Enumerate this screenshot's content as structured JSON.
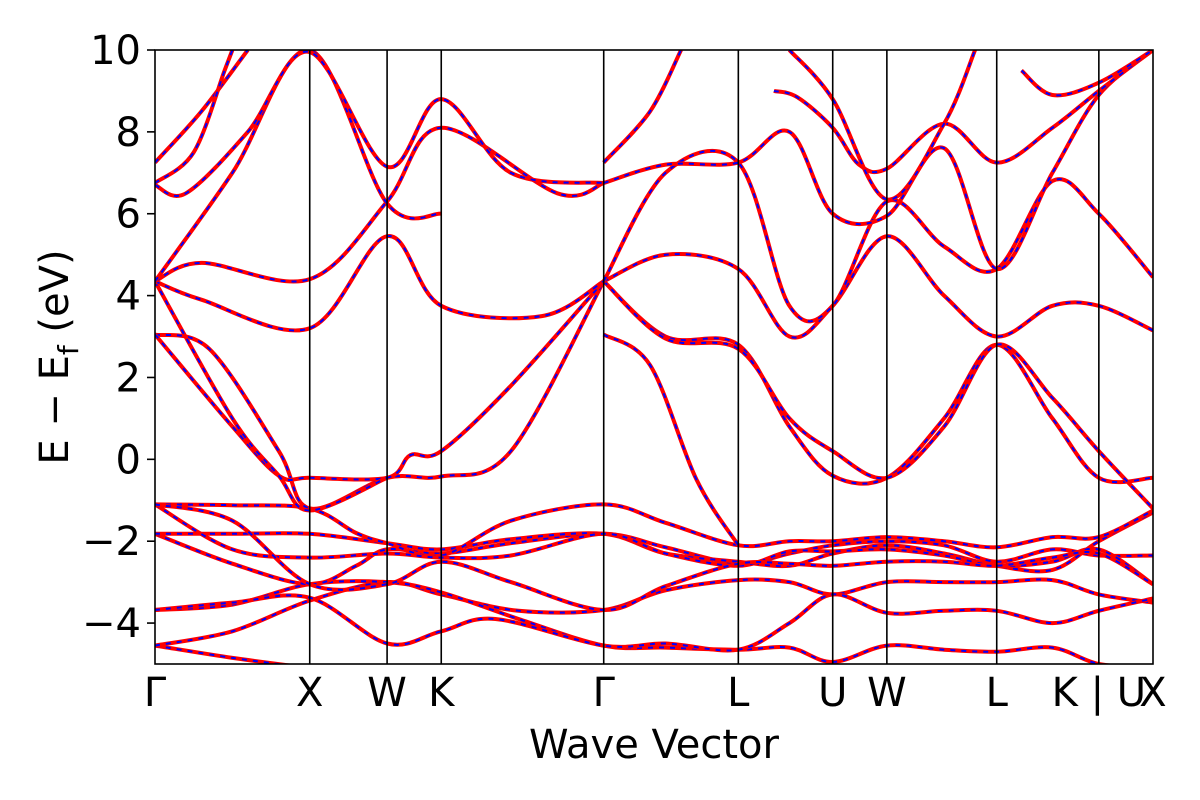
{
  "chart_data": {
    "type": "line",
    "title": "",
    "xlabel": "Wave Vector",
    "ylabel_main": "E − E",
    "ylabel_sub": "f",
    "ylabel_unit": " (eV)",
    "ylim": [
      -5,
      10
    ],
    "xlim": [
      0,
      6.45
    ],
    "yticks": [
      -4,
      -2,
      0,
      2,
      4,
      6,
      8,
      10
    ],
    "ytick_labels": [
      "−4",
      "−2",
      "0",
      "2",
      "4",
      "6",
      "8",
      "10"
    ],
    "kpoints": [
      {
        "label": "Γ",
        "x": 0.0
      },
      {
        "label": "X",
        "x": 1.0
      },
      {
        "label": "W",
        "x": 1.5
      },
      {
        "label": "K",
        "x": 1.85
      },
      {
        "label": "Γ",
        "x": 2.9
      },
      {
        "label": "L",
        "x": 3.77
      },
      {
        "label": "U",
        "x": 4.38
      },
      {
        "label": "W",
        "x": 4.73
      },
      {
        "label": "L",
        "x": 5.44
      },
      {
        "label": "K | U",
        "x": 6.1
      },
      {
        "label": "X",
        "x": 6.45
      }
    ],
    "grid": false,
    "series_colors": {
      "dft": "#ff0000",
      "fit": "#0000ff"
    },
    "bands": [
      [
        [
          0,
          -4.55
        ],
        [
          0.5,
          -4.85
        ],
        [
          1.0,
          -5.1
        ]
      ],
      [
        [
          0,
          -4.55
        ],
        [
          0.5,
          -4.2
        ],
        [
          1.0,
          -3.45
        ],
        [
          1.5,
          -3.0
        ],
        [
          1.85,
          -3.3
        ],
        [
          2.35,
          -3.7
        ],
        [
          2.9,
          -3.68
        ],
        [
          3.3,
          -3.2
        ],
        [
          3.77,
          -2.95
        ],
        [
          4.1,
          -3.0
        ],
        [
          4.38,
          -3.3
        ],
        [
          4.73,
          -3.0
        ],
        [
          5.1,
          -3.0
        ],
        [
          5.44,
          -3.0
        ],
        [
          5.8,
          -2.95
        ],
        [
          6.1,
          -3.3
        ],
        [
          6.45,
          -3.5
        ]
      ],
      [
        [
          0,
          -3.68
        ],
        [
          0.5,
          -3.55
        ],
        [
          1.0,
          -3.05
        ],
        [
          1.5,
          -3.0
        ],
        [
          1.85,
          -3.25
        ],
        [
          2.35,
          -3.9
        ],
        [
          2.9,
          -4.55
        ],
        [
          3.3,
          -4.6
        ],
        [
          3.77,
          -4.65
        ],
        [
          4.1,
          -4.6
        ],
        [
          4.38,
          -4.95
        ],
        [
          4.73,
          -4.55
        ],
        [
          5.1,
          -4.65
        ],
        [
          5.44,
          -4.7
        ],
        [
          5.8,
          -4.6
        ],
        [
          6.1,
          -5.0
        ],
        [
          6.45,
          -5.1
        ]
      ],
      [
        [
          0,
          -3.68
        ],
        [
          0.5,
          -3.5
        ],
        [
          1.0,
          -3.38
        ],
        [
          1.5,
          -4.5
        ],
        [
          1.85,
          -4.2
        ],
        [
          2.2,
          -3.9
        ],
        [
          2.9,
          -4.55
        ],
        [
          3.3,
          -4.5
        ],
        [
          3.77,
          -4.65
        ],
        [
          4.1,
          -4.0
        ],
        [
          4.38,
          -3.3
        ],
        [
          4.73,
          -3.75
        ],
        [
          5.1,
          -3.7
        ],
        [
          5.44,
          -3.7
        ],
        [
          5.8,
          -4.0
        ],
        [
          6.1,
          -3.7
        ],
        [
          6.45,
          -3.4
        ]
      ],
      [
        [
          0,
          -1.82
        ],
        [
          0.5,
          -2.55
        ],
        [
          1.0,
          -3.05
        ],
        [
          1.3,
          -2.6
        ],
        [
          1.5,
          -2.2
        ],
        [
          1.85,
          -2.3
        ],
        [
          2.3,
          -2.05
        ],
        [
          2.9,
          -1.82
        ],
        [
          3.3,
          -2.15
        ],
        [
          3.77,
          -2.55
        ],
        [
          4.1,
          -2.3
        ],
        [
          4.38,
          -2.1
        ],
        [
          4.73,
          -2.0
        ],
        [
          5.1,
          -2.1
        ],
        [
          5.44,
          -2.5
        ],
        [
          5.8,
          -2.2
        ],
        [
          6.1,
          -2.35
        ],
        [
          6.45,
          -2.35
        ]
      ],
      [
        [
          0,
          -1.82
        ],
        [
          0.5,
          -1.82
        ],
        [
          1.0,
          -1.82
        ],
        [
          1.5,
          -2.05
        ],
        [
          1.85,
          -2.2
        ],
        [
          2.3,
          -1.95
        ],
        [
          2.9,
          -1.82
        ],
        [
          3.3,
          -2.3
        ],
        [
          3.77,
          -2.5
        ],
        [
          4.1,
          -2.6
        ],
        [
          4.38,
          -2.3
        ],
        [
          4.73,
          -2.1
        ],
        [
          5.1,
          -2.3
        ],
        [
          5.44,
          -2.6
        ],
        [
          5.8,
          -2.7
        ],
        [
          6.1,
          -2.0
        ],
        [
          6.45,
          -1.3
        ]
      ],
      [
        [
          0,
          -1.1
        ],
        [
          0.5,
          -1.12
        ],
        [
          1.0,
          -1.2
        ],
        [
          1.3,
          -1.8
        ],
        [
          1.5,
          -2.05
        ],
        [
          1.85,
          -2.35
        ],
        [
          2.3,
          -1.5
        ],
        [
          2.9,
          -1.1
        ],
        [
          3.3,
          -1.55
        ],
        [
          3.77,
          -2.1
        ],
        [
          4.1,
          -2.0
        ],
        [
          4.38,
          -2.0
        ],
        [
          4.73,
          -1.9
        ],
        [
          5.1,
          -2.0
        ],
        [
          5.44,
          -2.15
        ],
        [
          5.8,
          -1.9
        ],
        [
          6.1,
          -1.9
        ],
        [
          6.45,
          -1.25
        ]
      ],
      [
        [
          0,
          -1.1
        ],
        [
          0.5,
          -2.2
        ],
        [
          1.0,
          -2.4
        ],
        [
          1.5,
          -2.3
        ],
        [
          1.85,
          -2.4
        ],
        [
          2.3,
          -2.35
        ],
        [
          2.9,
          -1.82
        ],
        [
          3.3,
          -2.3
        ],
        [
          3.77,
          -2.6
        ],
        [
          4.1,
          -2.25
        ],
        [
          4.38,
          -2.25
        ],
        [
          4.73,
          -2.2
        ],
        [
          5.1,
          -2.35
        ],
        [
          5.44,
          -2.6
        ],
        [
          5.8,
          -2.5
        ],
        [
          6.1,
          -2.2
        ],
        [
          6.45,
          -3.05
        ]
      ],
      [
        [
          0,
          -1.1
        ],
        [
          0.5,
          -1.5
        ],
        [
          1.0,
          -3.05
        ],
        [
          1.5,
          -3.05
        ],
        [
          1.85,
          -2.5
        ],
        [
          2.3,
          -3.0
        ],
        [
          2.9,
          -3.68
        ],
        [
          3.3,
          -3.1
        ],
        [
          3.77,
          -2.55
        ],
        [
          4.1,
          -2.55
        ],
        [
          4.38,
          -2.6
        ],
        [
          4.73,
          -2.5
        ],
        [
          5.1,
          -2.5
        ],
        [
          5.44,
          -2.6
        ],
        [
          5.8,
          -2.4
        ],
        [
          6.1,
          -2.3
        ],
        [
          6.45,
          -3.05
        ]
      ],
      [
        [
          0,
          3.05
        ],
        [
          0.35,
          2.7
        ],
        [
          0.8,
          0.2
        ],
        [
          1.0,
          -1.2
        ],
        [
          1.5,
          -0.45
        ],
        [
          1.85,
          -0.42
        ],
        [
          2.3,
          0.2
        ],
        [
          2.9,
          4.35
        ]
      ],
      [
        [
          0,
          3.05
        ],
        [
          0.5,
          0.8
        ],
        [
          0.8,
          -0.4
        ],
        [
          1.0,
          -0.45
        ],
        [
          1.5,
          -0.45
        ],
        [
          1.65,
          0.1
        ],
        [
          1.85,
          0.2
        ],
        [
          2.3,
          1.8
        ],
        [
          2.9,
          4.35
        ]
      ],
      [
        [
          0,
          4.35
        ],
        [
          0.5,
          1.0
        ],
        [
          0.8,
          -0.4
        ],
        [
          1.0,
          -1.25
        ],
        [
          1.5,
          -0.45
        ]
      ],
      [
        [
          0,
          4.35
        ],
        [
          0.3,
          3.9
        ],
        [
          1.0,
          3.2
        ],
        [
          1.5,
          5.45
        ],
        [
          1.85,
          3.75
        ],
        [
          2.5,
          3.5
        ],
        [
          2.9,
          4.35
        ]
      ],
      [
        [
          0,
          4.35
        ],
        [
          0.3,
          4.8
        ],
        [
          1.0,
          4.4
        ],
        [
          1.5,
          6.3
        ],
        [
          1.85,
          8.1
        ],
        [
          2.6,
          6.5
        ],
        [
          2.9,
          6.75
        ]
      ],
      [
        [
          0,
          4.35
        ],
        [
          0.5,
          7.0
        ],
        [
          1.0,
          10.0
        ],
        [
          1.5,
          6.25
        ],
        [
          1.85,
          6.0
        ]
      ],
      [
        [
          0,
          6.7
        ],
        [
          0.2,
          6.5
        ],
        [
          0.6,
          8.0
        ],
        [
          1.0,
          9.95
        ],
        [
          1.5,
          7.15
        ],
        [
          1.85,
          8.8
        ],
        [
          2.3,
          7.0
        ],
        [
          2.9,
          6.75
        ]
      ],
      [
        [
          0,
          7.25
        ],
        [
          0.3,
          8.5
        ],
        [
          0.6,
          10.0
        ]
      ],
      [
        [
          0,
          6.75
        ],
        [
          0.25,
          7.5
        ],
        [
          0.45,
          9.5
        ],
        [
          0.5,
          10.0
        ]
      ],
      [
        [
          2.9,
          3.05
        ],
        [
          3.2,
          2.3
        ],
        [
          3.5,
          -0.5
        ],
        [
          3.77,
          -2.1
        ]
      ],
      [
        [
          2.9,
          4.35
        ],
        [
          3.3,
          3.0
        ],
        [
          3.77,
          2.8
        ],
        [
          4.1,
          0.8
        ],
        [
          4.38,
          -0.4
        ],
        [
          4.73,
          -0.45
        ],
        [
          5.1,
          1.0
        ],
        [
          5.44,
          2.8
        ],
        [
          5.8,
          1.0
        ],
        [
          6.1,
          -0.45
        ],
        [
          6.45,
          -0.45
        ]
      ],
      [
        [
          2.9,
          4.35
        ],
        [
          3.3,
          2.95
        ],
        [
          3.77,
          2.7
        ],
        [
          4.1,
          1.0
        ],
        [
          4.38,
          0.2
        ],
        [
          4.73,
          -0.45
        ],
        [
          5.1,
          0.8
        ],
        [
          5.44,
          2.8
        ],
        [
          5.8,
          1.5
        ],
        [
          6.1,
          0.2
        ],
        [
          6.45,
          -1.2
        ]
      ],
      [
        [
          2.9,
          4.35
        ],
        [
          3.3,
          5.0
        ],
        [
          3.77,
          4.65
        ],
        [
          4.1,
          3.0
        ],
        [
          4.38,
          3.75
        ],
        [
          4.73,
          5.45
        ],
        [
          5.1,
          4.0
        ],
        [
          5.44,
          3.0
        ],
        [
          5.8,
          3.75
        ],
        [
          6.1,
          3.75
        ],
        [
          6.45,
          3.15
        ]
      ],
      [
        [
          2.9,
          4.35
        ],
        [
          3.3,
          7.0
        ],
        [
          3.77,
          7.25
        ],
        [
          4.1,
          3.75
        ],
        [
          4.38,
          3.75
        ],
        [
          4.73,
          6.3
        ],
        [
          5.1,
          5.2
        ],
        [
          5.44,
          4.65
        ],
        [
          5.8,
          6.8
        ],
        [
          6.1,
          6.0
        ],
        [
          6.45,
          4.45
        ]
      ],
      [
        [
          2.9,
          6.75
        ],
        [
          3.3,
          7.2
        ],
        [
          3.77,
          7.25
        ],
        [
          4.1,
          8.0
        ],
        [
          4.38,
          6.0
        ],
        [
          4.73,
          5.95
        ],
        [
          5.1,
          7.6
        ],
        [
          5.44,
          4.65
        ],
        [
          5.8,
          7.0
        ],
        [
          6.1,
          8.9
        ],
        [
          6.45,
          10.0
        ]
      ],
      [
        [
          2.9,
          7.25
        ],
        [
          3.2,
          8.5
        ],
        [
          3.4,
          10.0
        ]
      ],
      [
        [
          4.0,
          9.0
        ],
        [
          4.15,
          8.85
        ],
        [
          4.38,
          8.1
        ],
        [
          4.55,
          7.2
        ],
        [
          4.73,
          7.1
        ],
        [
          5.1,
          8.2
        ],
        [
          5.44,
          7.25
        ],
        [
          5.8,
          8.1
        ],
        [
          6.1,
          9.0
        ],
        [
          6.45,
          10.0
        ]
      ],
      [
        [
          4.1,
          10.0
        ],
        [
          4.38,
          8.8
        ],
        [
          4.73,
          6.35
        ],
        [
          5.1,
          8.2
        ],
        [
          5.3,
          10.0
        ]
      ],
      [
        [
          5.6,
          9.5
        ],
        [
          5.8,
          8.9
        ],
        [
          6.1,
          9.2
        ],
        [
          6.45,
          10.0
        ]
      ]
    ]
  }
}
